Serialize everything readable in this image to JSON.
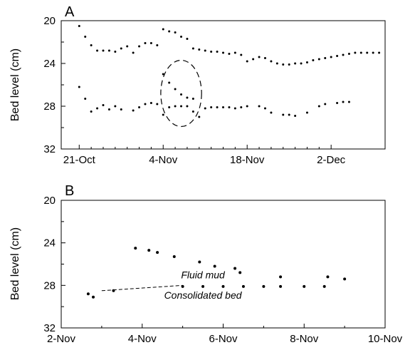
{
  "chart_data": [
    {
      "type": "scatter",
      "panel_label": "A",
      "title": "",
      "xlabel": "",
      "ylabel": "Bed level (cm)",
      "y_inverted": true,
      "ylim": [
        20,
        32
      ],
      "yticks": [
        20,
        24,
        28,
        32
      ],
      "xlim": [
        "2017-10-18",
        "2017-12-11"
      ],
      "xticks": [
        {
          "date": "2017-10-21",
          "label": "21-Oct"
        },
        {
          "date": "2017-11-04",
          "label": "4-Nov"
        },
        {
          "date": "2017-11-18",
          "label": "18-Nov"
        },
        {
          "date": "2017-12-02",
          "label": "2-Dec"
        }
      ],
      "series": [
        {
          "values": [
            [
              "2017-10-21",
              20.5
            ],
            [
              "2017-10-22",
              21.5
            ],
            [
              "2017-10-23",
              22.3
            ],
            [
              "2017-10-24",
              22.8
            ],
            [
              "2017-10-25",
              22.8
            ],
            [
              "2017-10-26",
              22.8
            ],
            [
              "2017-10-27",
              22.9
            ],
            [
              "2017-10-28",
              22.6
            ],
            [
              "2017-10-29",
              22.4
            ],
            [
              "2017-10-30",
              23.0
            ],
            [
              "2017-10-31",
              22.4
            ],
            [
              "2017-11-01",
              22.1
            ],
            [
              "2017-11-02",
              22.1
            ],
            [
              "2017-11-03",
              22.3
            ],
            [
              "2017-11-04",
              20.8
            ],
            [
              "2017-11-05",
              21.0
            ],
            [
              "2017-11-06",
              21.1
            ],
            [
              "2017-11-07",
              21.5
            ],
            [
              "2017-11-08",
              21.7
            ],
            [
              "2017-11-09",
              22.6
            ],
            [
              "2017-11-10",
              22.7
            ],
            [
              "2017-11-11",
              22.8
            ],
            [
              "2017-11-12",
              22.9
            ],
            [
              "2017-11-13",
              22.9
            ],
            [
              "2017-11-14",
              23.0
            ],
            [
              "2017-11-15",
              23.1
            ],
            [
              "2017-11-16",
              23.0
            ],
            [
              "2017-11-17",
              23.2
            ],
            [
              "2017-11-18",
              23.8
            ],
            [
              "2017-11-19",
              23.6
            ],
            [
              "2017-11-20",
              23.4
            ],
            [
              "2017-11-21",
              23.5
            ],
            [
              "2017-11-22",
              23.8
            ],
            [
              "2017-11-23",
              24.0
            ],
            [
              "2017-11-24",
              24.1
            ],
            [
              "2017-11-25",
              24.1
            ],
            [
              "2017-11-26",
              24.0
            ],
            [
              "2017-11-27",
              24.0
            ],
            [
              "2017-11-28",
              23.9
            ],
            [
              "2017-11-29",
              23.7
            ],
            [
              "2017-11-30",
              23.6
            ],
            [
              "2017-12-01",
              23.5
            ],
            [
              "2017-12-02",
              23.4
            ],
            [
              "2017-12-03",
              23.3
            ],
            [
              "2017-12-04",
              23.2
            ],
            [
              "2017-12-05",
              23.1
            ],
            [
              "2017-12-06",
              23.0
            ],
            [
              "2017-12-07",
              23.0
            ],
            [
              "2017-12-08",
              23.0
            ],
            [
              "2017-12-09",
              23.0
            ],
            [
              "2017-12-10",
              23.0
            ]
          ]
        },
        {
          "values": [
            [
              "2017-10-21",
              26.2
            ],
            [
              "2017-10-22",
              27.3
            ],
            [
              "2017-10-23",
              28.5
            ],
            [
              "2017-10-24",
              28.2
            ],
            [
              "2017-10-25",
              27.9
            ],
            [
              "2017-10-26",
              28.3
            ],
            [
              "2017-10-27",
              28.0
            ],
            [
              "2017-10-28",
              28.3
            ],
            [
              "2017-10-30",
              28.4
            ],
            [
              "2017-10-31",
              28.1
            ],
            [
              "2017-11-01",
              27.8
            ],
            [
              "2017-11-02",
              27.7
            ],
            [
              "2017-11-03",
              27.8
            ],
            [
              "2017-11-04",
              28.8
            ],
            [
              "2017-11-05",
              28.1
            ],
            [
              "2017-11-06",
              28.0
            ],
            [
              "2017-11-07",
              28.0
            ],
            [
              "2017-11-08",
              28.0
            ],
            [
              "2017-11-09",
              28.5
            ],
            [
              "2017-11-10",
              29.0
            ],
            [
              "2017-11-11",
              28.2
            ],
            [
              "2017-11-12",
              28.1
            ],
            [
              "2017-11-13",
              28.1
            ],
            [
              "2017-11-14",
              28.1
            ],
            [
              "2017-11-15",
              28.1
            ],
            [
              "2017-11-16",
              28.2
            ],
            [
              "2017-11-17",
              28.1
            ],
            [
              "2017-11-18",
              28.0
            ],
            [
              "2017-11-20",
              28.0
            ],
            [
              "2017-11-21",
              28.2
            ],
            [
              "2017-11-22",
              28.6
            ],
            [
              "2017-11-24",
              28.8
            ],
            [
              "2017-11-25",
              28.8
            ],
            [
              "2017-11-26",
              28.9
            ],
            [
              "2017-11-28",
              28.6
            ],
            [
              "2017-11-30",
              28.0
            ],
            [
              "2017-12-01",
              27.8
            ],
            [
              "2017-12-03",
              27.7
            ],
            [
              "2017-12-04",
              27.6
            ],
            [
              "2017-12-05",
              27.6
            ]
          ]
        },
        {
          "values": [
            [
              "2017-11-04",
              25.0
            ],
            [
              "2017-11-05",
              25.8
            ],
            [
              "2017-11-06",
              26.4
            ],
            [
              "2017-11-07",
              26.9
            ],
            [
              "2017-11-08",
              27.2
            ],
            [
              "2017-11-09",
              27.3
            ]
          ]
        }
      ],
      "annotations": [
        {
          "shape": "dashed-ellipse",
          "center": [
            "2017-11-07",
            26.8
          ],
          "x_half_width_days": 3.4,
          "y_half_height": 3.1
        }
      ]
    },
    {
      "type": "scatter",
      "panel_label": "B",
      "title": "",
      "xlabel": "",
      "ylabel": "Bed level (cm)",
      "y_inverted": true,
      "ylim": [
        20,
        32
      ],
      "yticks": [
        20,
        24,
        28,
        32
      ],
      "xlim": [
        "2017-11-02",
        "2017-11-10"
      ],
      "xticks": [
        {
          "date": "2017-11-02",
          "label": "2-Nov"
        },
        {
          "date": "2017-11-04",
          "label": "4-Nov"
        },
        {
          "date": "2017-11-06",
          "label": "6-Nov"
        },
        {
          "date": "2017-11-08",
          "label": "8-Nov"
        },
        {
          "date": "2017-11-10",
          "label": "10-Nov"
        }
      ],
      "series": [
        {
          "values": [
            [
              "2017-11-03T20:00",
              24.5
            ],
            [
              "2017-11-04T04:00",
              24.7
            ],
            [
              "2017-11-04T09:00",
              24.9
            ],
            [
              "2017-11-04T19:00",
              25.3
            ],
            [
              "2017-11-05T10:00",
              25.8
            ],
            [
              "2017-11-05T19:00",
              26.2
            ],
            [
              "2017-11-06T07:00",
              26.4
            ],
            [
              "2017-11-06T10:00",
              26.8
            ],
            [
              "2017-11-07T10:00",
              27.2
            ],
            [
              "2017-11-08T14:00",
              27.2
            ],
            [
              "2017-11-09T00:00",
              27.4
            ]
          ]
        },
        {
          "values": [
            [
              "2017-11-02T16:00",
              28.8
            ],
            [
              "2017-11-02T19:00",
              29.1
            ],
            [
              "2017-11-03T07:00",
              28.5
            ],
            [
              "2017-11-05T00:00",
              28.1
            ],
            [
              "2017-11-05T12:00",
              28.1
            ],
            [
              "2017-11-06T00:00",
              28.1
            ],
            [
              "2017-11-06T12:00",
              28.1
            ],
            [
              "2017-11-07T00:00",
              28.1
            ],
            [
              "2017-11-07T10:00",
              28.1
            ],
            [
              "2017-11-08T00:00",
              28.1
            ],
            [
              "2017-11-08T12:00",
              28.1
            ]
          ]
        }
      ],
      "trend_line": {
        "from": [
          "2017-11-03T00:00",
          28.5
        ],
        "to": [
          "2017-11-05T00:00",
          28.0
        ]
      },
      "annotations": [
        {
          "text": "Fluid mud",
          "at": [
            "2017-11-05T12:00",
            27.0
          ]
        },
        {
          "text": "Consolidated bed",
          "at": [
            "2017-11-05T12:00",
            28.9
          ]
        }
      ]
    }
  ]
}
